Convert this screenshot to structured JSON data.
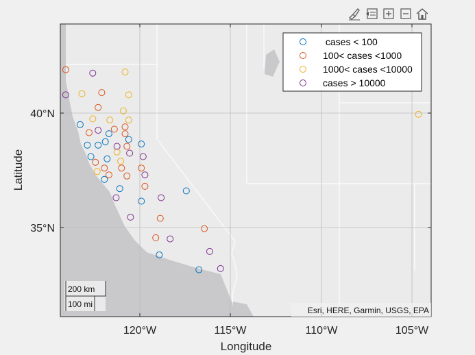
{
  "toolbar": {
    "icons": [
      "brush-icon",
      "export-icon",
      "zoom-in-icon",
      "zoom-out-icon",
      "home-icon"
    ]
  },
  "scalebar": {
    "km": "200 km",
    "mi": "100 mi"
  },
  "attribution": "Esri, HERE, Garmin, USGS, EPA",
  "chart_data": {
    "type": "scatter",
    "xlabel": "Longitude",
    "ylabel": "Latitude",
    "xlim": [
      -124.4,
      -103.8
    ],
    "ylim": [
      31.0,
      43.8
    ],
    "xticks": [
      -120,
      -115,
      -110,
      -105
    ],
    "xticklabels": [
      "120°W",
      "115°W",
      "110°W",
      "105°W"
    ],
    "yticks": [
      35,
      40
    ],
    "yticklabels": [
      "35°N",
      "40°N"
    ],
    "grid": true,
    "legend_position": "top-right",
    "series": [
      {
        "name": " cases < 100",
        "color": "#0072BD",
        "points": [
          [
            -123.3,
            39.4
          ],
          [
            -122.9,
            38.5
          ],
          [
            -122.3,
            38.5
          ],
          [
            -122.7,
            38.0
          ],
          [
            -121.7,
            39.0
          ],
          [
            -121.9,
            38.65
          ],
          [
            -121.8,
            37.9
          ],
          [
            -121.95,
            37.0
          ],
          [
            -121.1,
            36.6
          ],
          [
            -120.6,
            38.75
          ],
          [
            -119.9,
            38.55
          ],
          [
            -119.9,
            36.05
          ],
          [
            -117.4,
            36.5
          ],
          [
            -118.9,
            33.7
          ],
          [
            -116.7,
            33.05
          ]
        ]
      },
      {
        "name": "100< cases <1000",
        "color": "#D95319",
        "points": [
          [
            -124.1,
            41.8
          ],
          [
            -122.1,
            40.8
          ],
          [
            -122.3,
            40.15
          ],
          [
            -122.8,
            39.05
          ],
          [
            -121.4,
            39.2
          ],
          [
            -120.8,
            39.3
          ],
          [
            -120.8,
            39.0
          ],
          [
            -120.7,
            38.45
          ],
          [
            -122.45,
            37.75
          ],
          [
            -121.95,
            37.5
          ],
          [
            -121.7,
            37.2
          ],
          [
            -121.0,
            37.5
          ],
          [
            -120.7,
            37.15
          ],
          [
            -119.9,
            37.5
          ],
          [
            -119.7,
            36.7
          ],
          [
            -118.85,
            35.3
          ],
          [
            -119.1,
            34.45
          ],
          [
            -116.4,
            34.85
          ]
        ]
      },
      {
        "name": "1000< cases <10000",
        "color": "#EDB120",
        "points": [
          [
            -120.8,
            41.7
          ],
          [
            -123.2,
            40.75
          ],
          [
            -120.6,
            40.7
          ],
          [
            -120.9,
            40.0
          ],
          [
            -122.6,
            39.65
          ],
          [
            -121.65,
            39.6
          ],
          [
            -120.6,
            39.6
          ],
          [
            -121.25,
            38.2
          ],
          [
            -121.05,
            37.8
          ],
          [
            -122.35,
            37.35
          ],
          [
            -104.5,
            39.85
          ]
        ]
      },
      {
        "name": "cases > 10000",
        "color": "#7E2F8E",
        "points": [
          [
            -122.6,
            41.65
          ],
          [
            -124.1,
            40.7
          ],
          [
            -122.3,
            39.15
          ],
          [
            -121.25,
            38.45
          ],
          [
            -120.55,
            38.15
          ],
          [
            -119.8,
            38.0
          ],
          [
            -119.7,
            37.2
          ],
          [
            -121.3,
            36.2
          ],
          [
            -118.8,
            36.2
          ],
          [
            -120.5,
            35.35
          ],
          [
            -118.3,
            34.4
          ],
          [
            -116.1,
            33.85
          ],
          [
            -115.5,
            33.1
          ]
        ]
      }
    ]
  }
}
